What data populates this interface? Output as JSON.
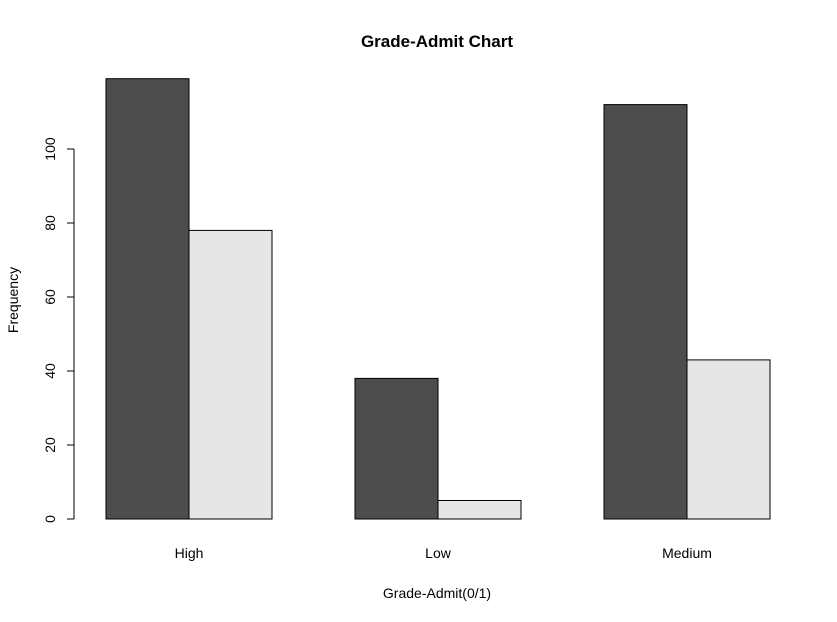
{
  "chart_data": {
    "type": "bar",
    "title": "Grade-Admit Chart",
    "xlabel": "Grade-Admit(0/1)",
    "ylabel": "Frequency",
    "categories": [
      "High",
      "Low",
      "Medium"
    ],
    "series": [
      {
        "values": [
          119,
          38,
          112
        ],
        "color": "#4d4d4d"
      },
      {
        "values": [
          78,
          5,
          43
        ],
        "color": "#e6e6e6"
      }
    ],
    "ylim": [
      0,
      119
    ],
    "yticks": [
      0,
      20,
      40,
      60,
      80,
      100
    ],
    "grid": false,
    "legend": "none"
  }
}
